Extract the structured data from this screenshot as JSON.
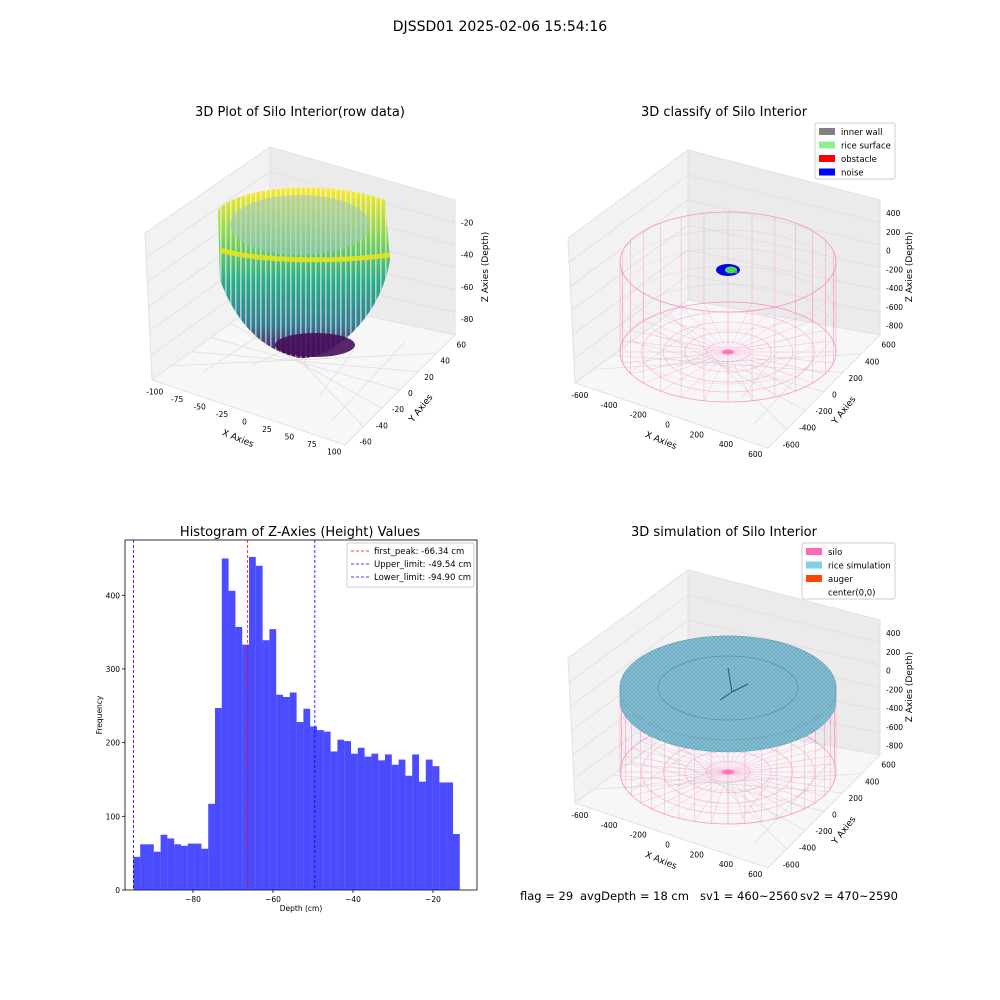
{
  "suptitle": "DJSSD01 2025-02-06 15:54:16",
  "status": {
    "flag": "flag = 29",
    "avg_depth": "avgDepth = 18 cm",
    "sv1": "sv1 = 460~2560",
    "sv2": "sv2 = 470~2590"
  },
  "chart_data": [
    {
      "type": "scatter3d",
      "title": "3D Plot of Silo Interior(row data)",
      "xlabel": "X Axies",
      "ylabel": "Y Axies",
      "zlabel": "Z Axies (Depth)",
      "x_ticks": [
        -100,
        -75,
        -50,
        -25,
        0,
        25,
        50,
        75,
        100
      ],
      "y_ticks": [
        -60,
        -40,
        -20,
        0,
        20,
        40,
        60
      ],
      "z_ticks": [
        -80,
        -60,
        -40,
        -20
      ],
      "colormap": "viridis"
    },
    {
      "type": "scatter3d",
      "title": "3D classify of Silo Interior",
      "xlabel": "X Axies",
      "ylabel": "Y Axies",
      "zlabel": "Z Axies (Depth)",
      "x_ticks": [
        -600,
        -400,
        -200,
        0,
        200,
        400,
        600
      ],
      "y_ticks": [
        -600,
        -400,
        -200,
        0,
        200,
        400,
        600
      ],
      "z_ticks": [
        -800,
        -600,
        -400,
        -200,
        0,
        200,
        400
      ],
      "legend_position": "top-right",
      "legend": [
        {
          "label": "inner wall",
          "color": "#808080"
        },
        {
          "label": "rice surface",
          "color": "#90ee90"
        },
        {
          "label": "obstacle",
          "color": "#ff0000"
        },
        {
          "label": "noise",
          "color": "#0000ff"
        }
      ]
    },
    {
      "type": "bar",
      "title": "Histogram of Z-Axies (Height) Values",
      "xlabel": "Depth (cm)",
      "ylabel": "Frequency",
      "xlim": [
        -97,
        -9
      ],
      "ylim": [
        0,
        475
      ],
      "x_ticks": [
        -80,
        -60,
        -40,
        -20
      ],
      "y_ticks": [
        0,
        100,
        200,
        300,
        400
      ],
      "bar_color": "#0000ff",
      "bin_start": -94.9,
      "bin_width": 1.7,
      "values": [
        45,
        62,
        62,
        52,
        75,
        70,
        62,
        60,
        63,
        63,
        56,
        117,
        247,
        450,
        406,
        357,
        333,
        452,
        440,
        339,
        354,
        265,
        262,
        268,
        228,
        246,
        222,
        217,
        215,
        188,
        204,
        202,
        185,
        193,
        181,
        185,
        176,
        184,
        170,
        177,
        155,
        184,
        147,
        177,
        168,
        146,
        146,
        76
      ],
      "vlines": [
        {
          "label": "first_peak: -66.34 cm",
          "x": -66.34,
          "color": "#ff0000"
        },
        {
          "label": "Upper_limit: -49.54 cm",
          "x": -49.54,
          "color": "#0000ff"
        },
        {
          "label": "Lower_limit: -94.90 cm",
          "x": -94.9,
          "color": "#0000ff"
        }
      ],
      "legend_position": "top-right"
    },
    {
      "type": "surface3d",
      "title": "3D simulation of Silo Interior",
      "xlabel": "X Axies",
      "ylabel": "Y Axies",
      "zlabel": "Z Axies (Depth)",
      "x_ticks": [
        -600,
        -400,
        -200,
        0,
        200,
        400,
        600
      ],
      "y_ticks": [
        -600,
        -400,
        -200,
        0,
        200,
        400,
        600
      ],
      "z_ticks": [
        -800,
        -600,
        -400,
        -200,
        0,
        200,
        400
      ],
      "legend_position": "top-right",
      "legend": [
        {
          "label": "silo",
          "color": "#ff69b4"
        },
        {
          "label": "rice simulation",
          "color": "#87ceeb"
        },
        {
          "label": "auger",
          "color": "#ff4500"
        },
        {
          "label": "center(0,0)",
          "color": "#ffffff"
        }
      ]
    }
  ]
}
